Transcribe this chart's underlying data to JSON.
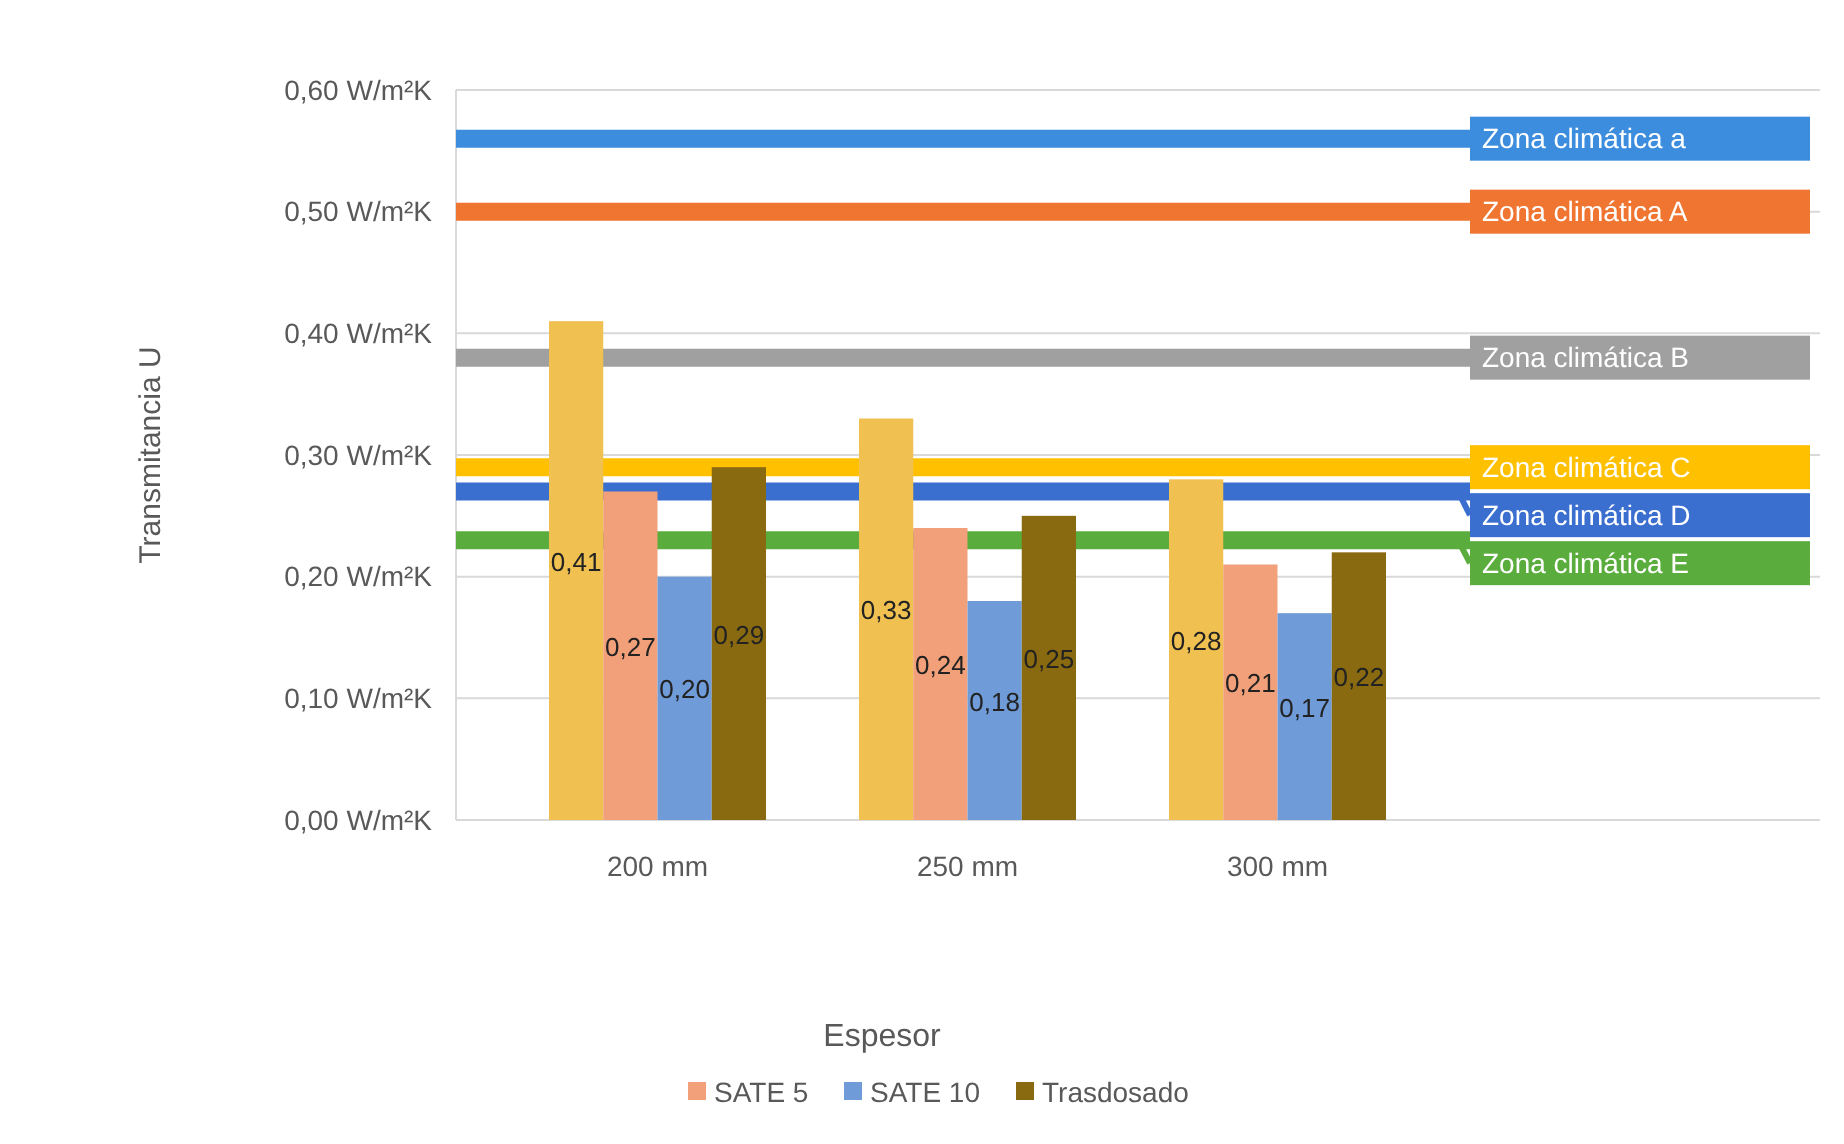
{
  "chart_data": {
    "type": "bar",
    "xlabel": "Espesor",
    "ylabel": "Transmitancia U",
    "categories": [
      "200 mm",
      "250 mm",
      "300 mm"
    ],
    "series": [
      {
        "color": "#f0c050",
        "values": [
          0.41,
          0.33,
          0.28
        ],
        "value_labels": [
          "0,41",
          "0,33",
          "0,28"
        ]
      },
      {
        "name": "SATE 5",
        "color": "#f2a07a",
        "values": [
          0.27,
          0.24,
          0.21
        ],
        "value_labels": [
          "0,27",
          "0,24",
          "0,21"
        ]
      },
      {
        "name": "SATE 10",
        "color": "#6f9bd8",
        "values": [
          0.2,
          0.18,
          0.17
        ],
        "value_labels": [
          "0,20",
          "0,18",
          "0,17"
        ]
      },
      {
        "name": "Trasdosado",
        "color": "#8a6a10",
        "values": [
          0.29,
          0.25,
          0.22
        ],
        "value_labels": [
          "0,29",
          "0,25",
          "0,22"
        ]
      }
    ],
    "ylim": [
      0,
      0.6
    ],
    "yticks": [
      {
        "value": 0,
        "label": "0,00 W/m²K"
      },
      {
        "value": 0.1,
        "label": "0,10 W/m²K"
      },
      {
        "value": 0.2,
        "label": "0,20 W/m²K"
      },
      {
        "value": 0.3,
        "label": "0,30 W/m²K"
      },
      {
        "value": 0.4,
        "label": "0,40 W/m²K"
      },
      {
        "value": 0.5,
        "label": "0,50 W/m²K"
      },
      {
        "value": 0.6,
        "label": "0,60 W/m²K"
      }
    ],
    "grid": "y",
    "legend": "bottom",
    "ref_lines": [
      {
        "axis": "y",
        "value": 0.56,
        "label": "Zona climática a",
        "color": "#3c8dde"
      },
      {
        "axis": "y",
        "value": 0.5,
        "label": "Zona climática A",
        "color": "#ef7530"
      },
      {
        "axis": "y",
        "value": 0.38,
        "label": "Zona climática B",
        "color": "#a0a0a0"
      },
      {
        "axis": "y",
        "value": 0.29,
        "label": "Zona climática C",
        "color": "#ffc000"
      },
      {
        "axis": "y",
        "value": 0.27,
        "label": "Zona climática D",
        "color": "#3a6fd0"
      },
      {
        "axis": "y",
        "value": 0.23,
        "label": "Zona climática E",
        "color": "#5aad3d"
      }
    ]
  }
}
